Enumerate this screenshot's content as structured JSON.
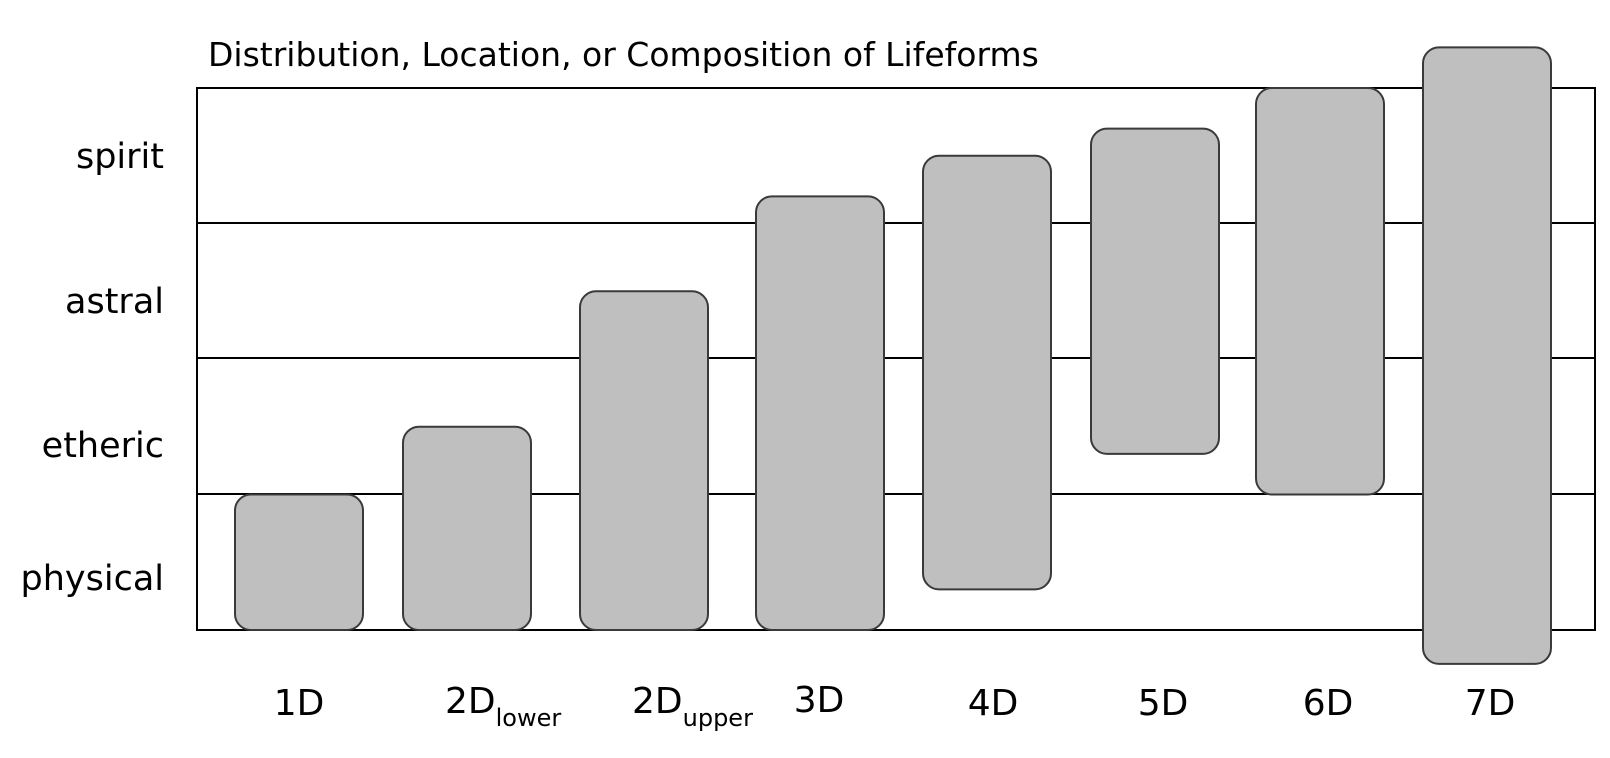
{
  "title": "Distribution, Location, or Composition of Lifeforms",
  "rows": [
    "spirit",
    "astral",
    "etheric",
    "physical"
  ],
  "columns": [
    {
      "main": "1D",
      "sub": "",
      "span": [
        0,
        1
      ]
    },
    {
      "main": "2D",
      "sub": "lower",
      "span": [
        0,
        1.5
      ]
    },
    {
      "main": "2D",
      "sub": "upper",
      "span": [
        0,
        2.5
      ]
    },
    {
      "main": "3D",
      "sub": "",
      "span": [
        0,
        3.2
      ]
    },
    {
      "main": "4D",
      "sub": "",
      "span": [
        0.3,
        3.5
      ]
    },
    {
      "main": "5D",
      "sub": "",
      "span": [
        1.3,
        3.7
      ]
    },
    {
      "main": "6D",
      "sub": "",
      "span": [
        1,
        4
      ]
    },
    {
      "main": "7D",
      "sub": "",
      "span": [
        -0.25,
        4.3
      ]
    }
  ],
  "colors": {
    "bar_fill": "#bfbfbf",
    "bar_stroke": "#3a3a3a",
    "line": "#000000"
  }
}
